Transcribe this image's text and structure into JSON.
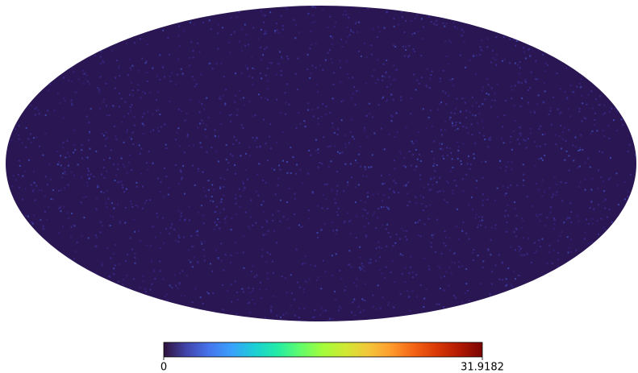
{
  "chart_data": {
    "type": "mollview",
    "colormap": "turbo",
    "clim": [
      0,
      31.9182
    ],
    "cticks": [
      0,
      31.9182
    ]
  }
}
